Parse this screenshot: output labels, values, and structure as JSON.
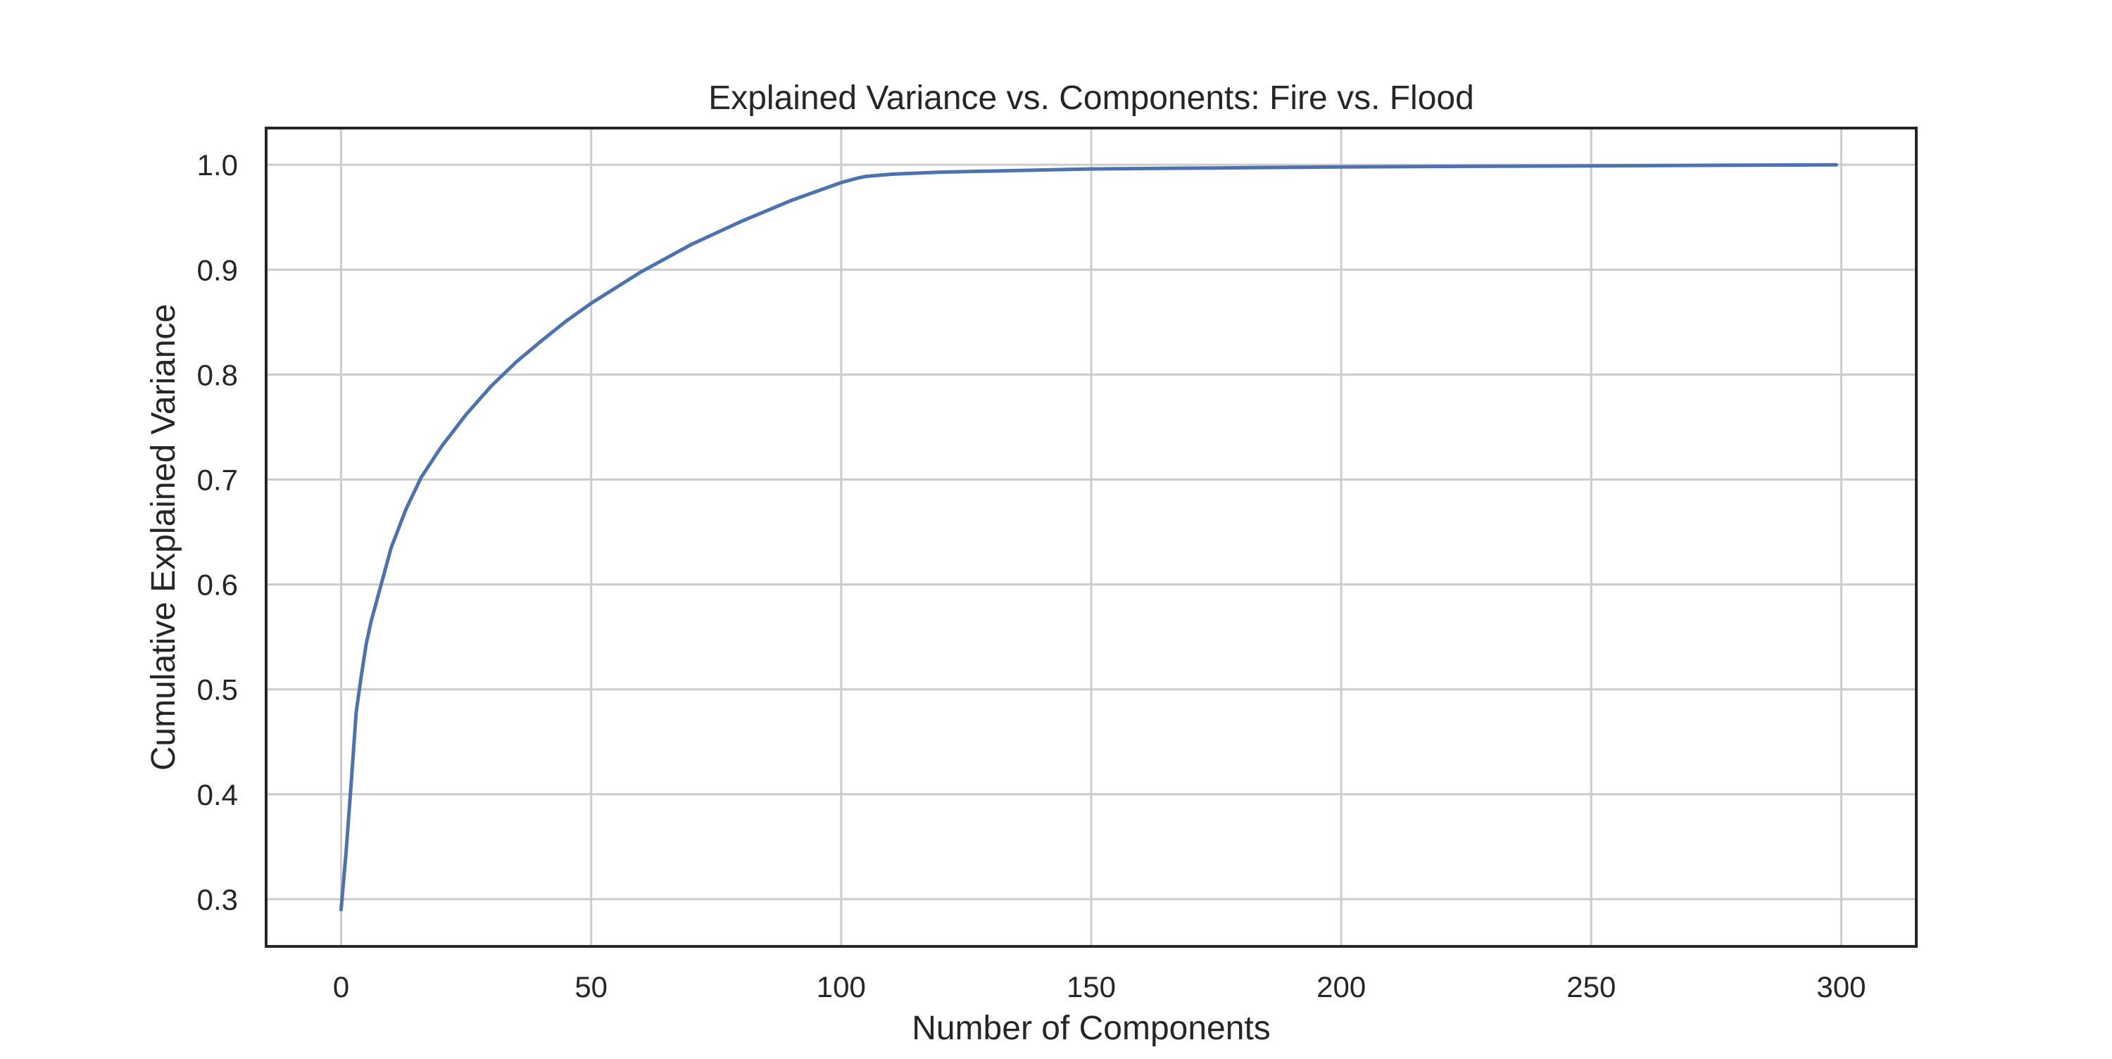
{
  "chart_data": {
    "type": "line",
    "title": "Explained Variance vs. Components: Fire vs. Flood",
    "xlabel": "Number of Components",
    "ylabel": "Cumulative Explained Variance",
    "xlim": [
      -15,
      315
    ],
    "ylim": [
      0.255,
      1.035
    ],
    "xticks": [
      0,
      50,
      100,
      150,
      200,
      250,
      300
    ],
    "yticks": [
      0.3,
      0.4,
      0.5,
      0.6,
      0.7,
      0.8,
      0.9,
      1.0
    ],
    "xtick_labels": [
      "0",
      "50",
      "100",
      "150",
      "200",
      "250",
      "300"
    ],
    "ytick_labels": [
      "0.3",
      "0.4",
      "0.5",
      "0.6",
      "0.7",
      "0.8",
      "0.9",
      "1.0"
    ],
    "grid": true,
    "legend": false,
    "colors": {
      "series": "#4c72b0",
      "grid": "#cccccc",
      "frame": "#262626"
    },
    "series": [
      {
        "x": [
          0,
          1,
          2,
          3,
          4,
          5,
          6,
          8,
          10,
          13,
          16,
          20,
          25,
          30,
          35,
          40,
          45,
          50,
          60,
          70,
          80,
          90,
          100,
          103,
          105,
          110,
          120,
          130,
          150,
          175,
          200,
          225,
          250,
          275,
          299
        ],
        "y": [
          0.29,
          0.345,
          0.41,
          0.478,
          0.512,
          0.543,
          0.565,
          0.6,
          0.635,
          0.672,
          0.702,
          0.731,
          0.762,
          0.789,
          0.812,
          0.832,
          0.851,
          0.868,
          0.898,
          0.924,
          0.946,
          0.966,
          0.983,
          0.987,
          0.989,
          0.991,
          0.993,
          0.994,
          0.996,
          0.997,
          0.998,
          0.9985,
          0.999,
          0.9995,
          1.0
        ]
      }
    ]
  }
}
